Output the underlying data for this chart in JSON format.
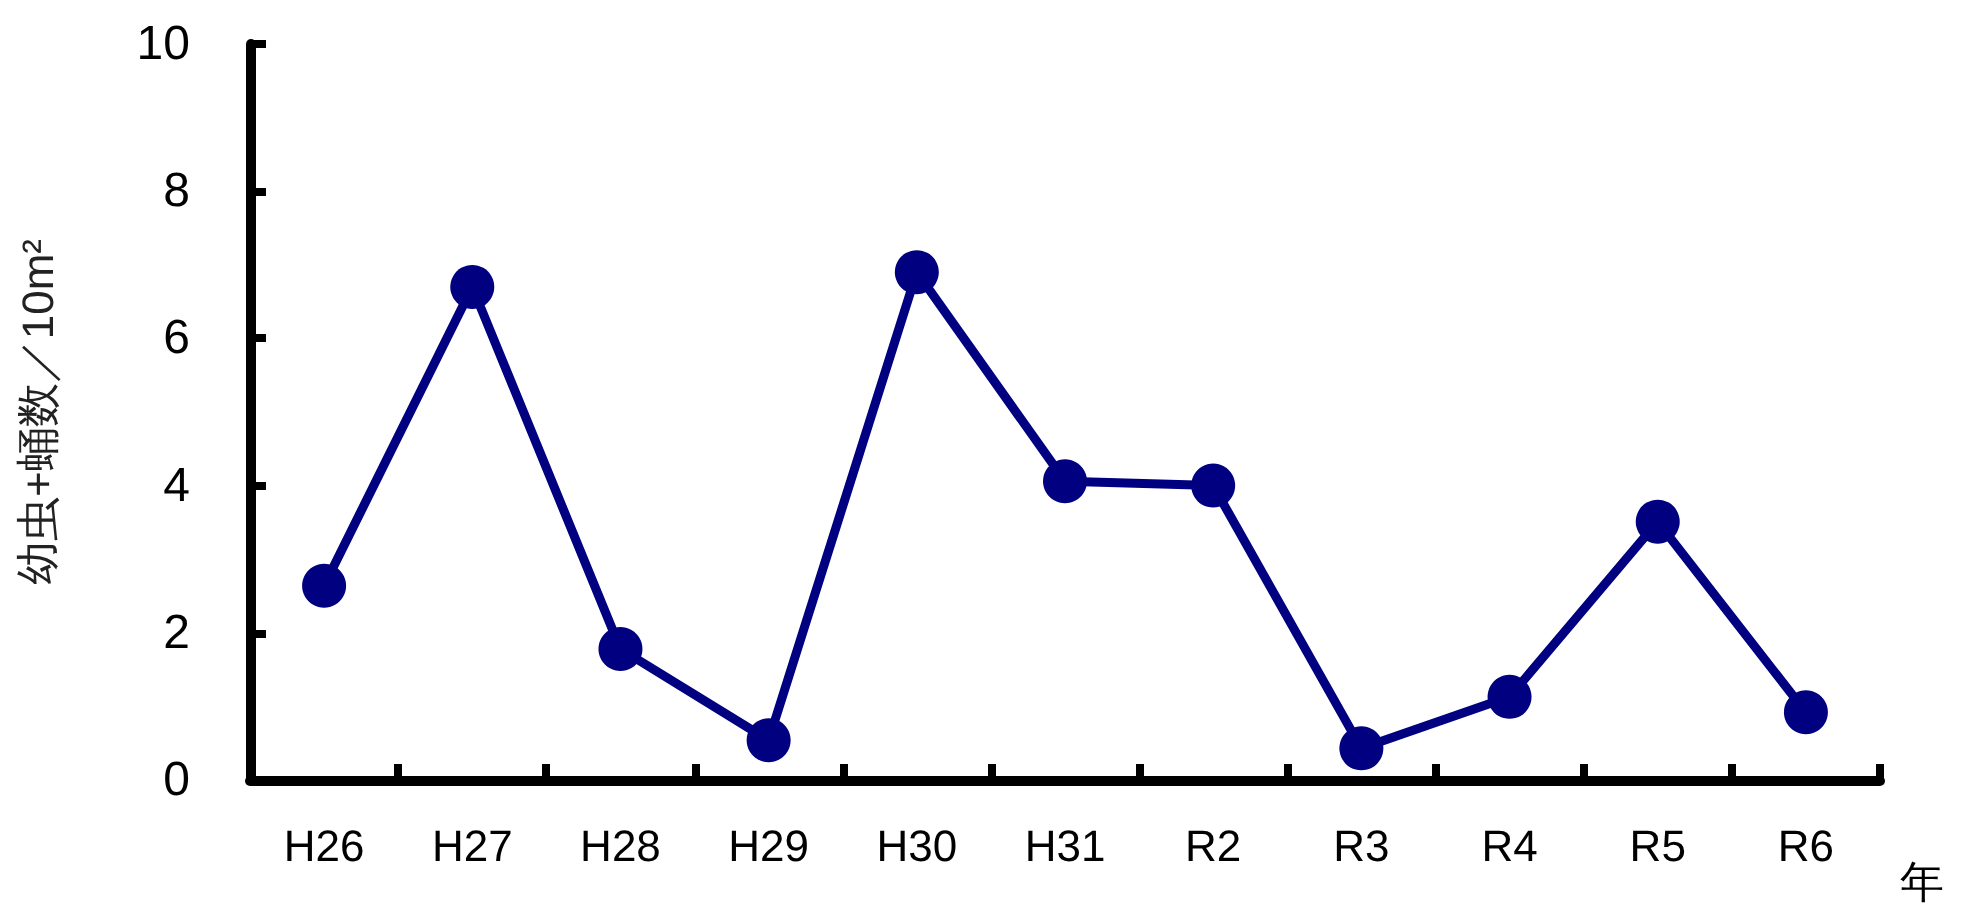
{
  "chart_data": {
    "type": "line",
    "ylabel": "幼虫+蛹数／10m²",
    "xlabel": "年",
    "categories": [
      "H26",
      "H27",
      "H28",
      "H29",
      "H30",
      "H31",
      "R2",
      "R3",
      "R4",
      "R5",
      "R6"
    ],
    "series": [
      {
        "color": "#000080",
        "values": [
          2.64,
          6.7,
          1.78,
          0.54,
          6.9,
          4.06,
          4.0,
          0.43,
          1.13,
          3.51,
          0.92
        ]
      }
    ],
    "ylim": [
      0,
      10
    ],
    "yticks": [
      0,
      2,
      4,
      6,
      8,
      10
    ],
    "grid": false,
    "marker": "circle",
    "line_style": "solid"
  }
}
